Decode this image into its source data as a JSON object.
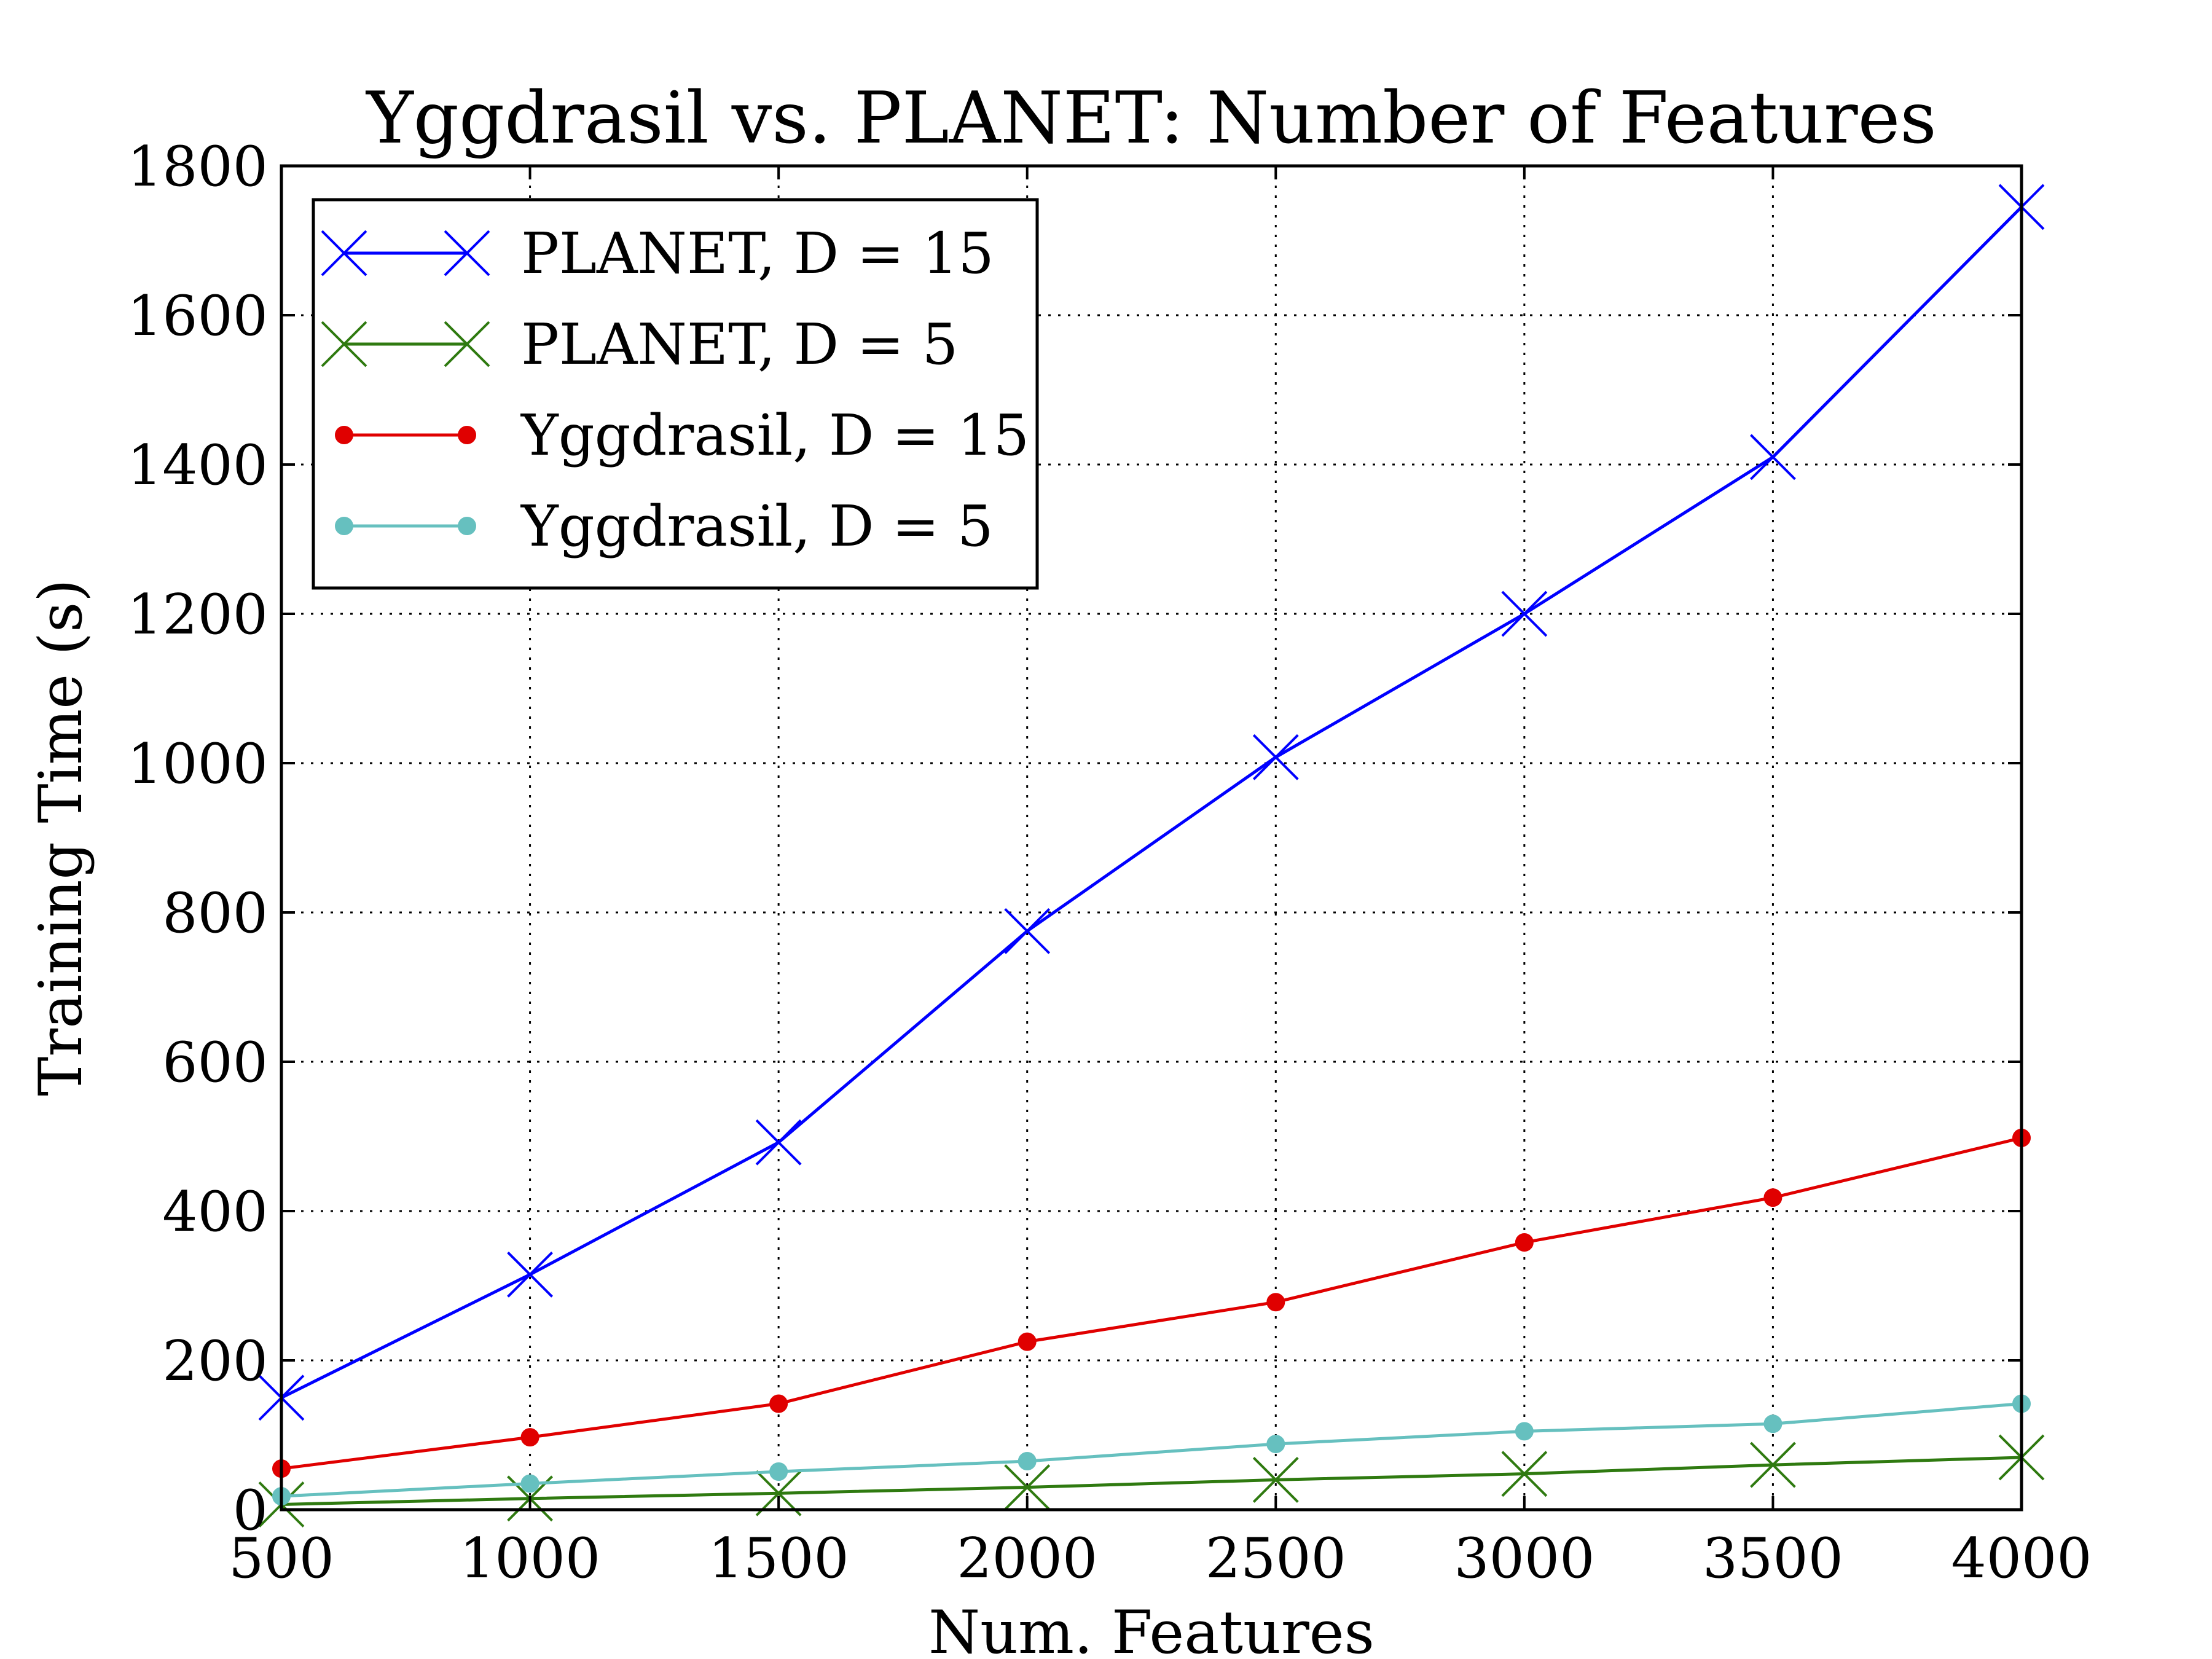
{
  "chart_data": {
    "type": "line",
    "title": "Yggdrasil vs. PLANET: Number of Features",
    "xlabel": "Num. Features",
    "ylabel": "Training Time (s)",
    "xlim": [
      500,
      4000
    ],
    "ylim": [
      0,
      1800
    ],
    "xticks": [
      500,
      1000,
      1500,
      2000,
      2500,
      3000,
      3500,
      4000
    ],
    "yticks": [
      0,
      200,
      400,
      600,
      800,
      1000,
      1200,
      1400,
      1600,
      1800
    ],
    "grid": true,
    "legend_position": "top-left",
    "x": [
      500,
      1000,
      1500,
      2000,
      2500,
      3000,
      3500,
      4000
    ],
    "series": [
      {
        "name": "PLANET, D = 15",
        "color": "#0000ff",
        "marker": "x",
        "values": [
          150,
          315,
          492,
          775,
          1008,
          1200,
          1410,
          1745
        ]
      },
      {
        "name": "PLANET, D = 5",
        "color": "#2f7a10",
        "marker": "x",
        "values": [
          7,
          15,
          22,
          30,
          40,
          48,
          60,
          70
        ]
      },
      {
        "name": "Yggdrasil, D = 15",
        "color": "#e00000",
        "marker": "circle",
        "values": [
          55,
          97,
          142,
          225,
          278,
          358,
          418,
          498
        ]
      },
      {
        "name": "Yggdrasil, D = 5",
        "color": "#66c0bf",
        "marker": "circle",
        "values": [
          18,
          35,
          51,
          65,
          88,
          105,
          115,
          142
        ]
      }
    ]
  }
}
